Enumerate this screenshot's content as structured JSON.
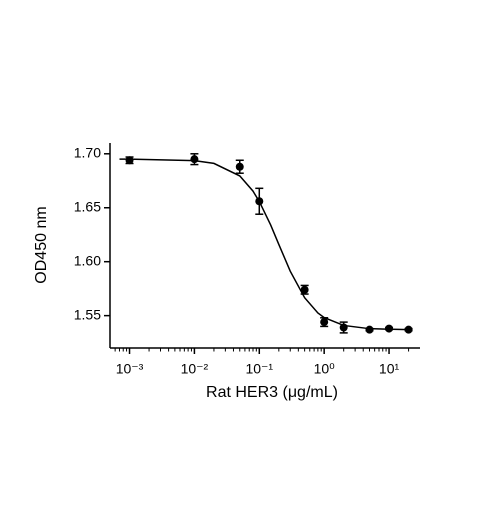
{
  "chart_data": {
    "type": "scatter",
    "xlabel": "Rat HER3 (μg/mL)",
    "ylabel": "OD450 nm",
    "x_scale": "log",
    "x": [
      0.001,
      0.01,
      0.05,
      0.1,
      0.5,
      1,
      2,
      5,
      10,
      20
    ],
    "series": [
      {
        "color": "#000000",
        "values": [
          1.694,
          1.695,
          1.688,
          1.656,
          1.574,
          1.544,
          1.539,
          1.537,
          1.538,
          1.537
        ],
        "errors": [
          0.003,
          0.005,
          0.006,
          0.012,
          0.004,
          0.004,
          0.005,
          0.001,
          0.001,
          0.001
        ]
      }
    ],
    "fit": {
      "color": "#000000",
      "x": [
        0.0007,
        0.001,
        0.01,
        0.02,
        0.05,
        0.08,
        0.1,
        0.15,
        0.2,
        0.3,
        0.5,
        0.8,
        1,
        2,
        5,
        20
      ],
      "values": [
        1.695,
        1.695,
        1.6937,
        1.6911,
        1.6795,
        1.6654,
        1.6558,
        1.6339,
        1.616,
        1.5912,
        1.5666,
        1.5525,
        1.5482,
        1.5409,
        1.5379,
        1.537
      ]
    },
    "xlim": [
      0.0005,
      30
    ],
    "ylim": [
      1.52,
      1.71
    ],
    "xticks": [
      {
        "value": 0.001,
        "label": "10⁻³"
      },
      {
        "value": 0.01,
        "label": "10⁻²"
      },
      {
        "value": 0.1,
        "label": "10⁻¹"
      },
      {
        "value": 1,
        "label": "10⁰"
      },
      {
        "value": 10,
        "label": "10¹"
      }
    ],
    "xminorticks": [
      0.0006,
      0.0007,
      0.0008,
      0.0009,
      0.002,
      0.003,
      0.004,
      0.005,
      0.006,
      0.007,
      0.008,
      0.009,
      0.02,
      0.03,
      0.04,
      0.05,
      0.06,
      0.07,
      0.08,
      0.09,
      0.2,
      0.3,
      0.4,
      0.5,
      0.6,
      0.7,
      0.8,
      0.9,
      2,
      3,
      4,
      5,
      6,
      7,
      8,
      9,
      20
    ],
    "yticks": [
      1.55,
      {
        "value": 1.6,
        "label": "1.60"
      },
      1.65,
      {
        "value": 1.7,
        "label": "1.70"
      }
    ],
    "grid": false
  }
}
